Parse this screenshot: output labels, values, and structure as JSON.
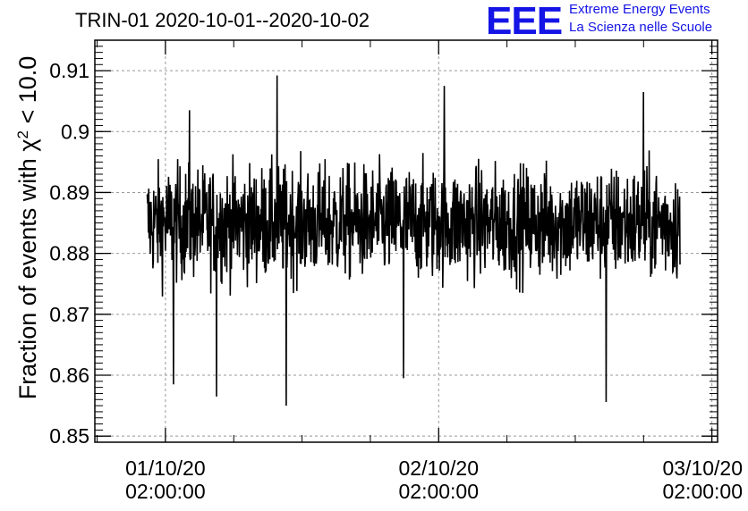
{
  "header": {
    "title": "TRIN-01 2020-10-01--2020-10-02",
    "logo_text": "EEE",
    "logo_line1": "Extreme Energy Events",
    "logo_line2": "La Scienza nelle Scuole",
    "logo_color": "#1414e6"
  },
  "chart_data": {
    "type": "line",
    "title": "TRIN-01 2020-10-01--2020-10-02",
    "ylabel_main": "Fraction of events with χ",
    "ylabel_sup": "2",
    "ylabel_tail": " < 10.0",
    "xlabel": "",
    "ylim": [
      0.849,
      0.915
    ],
    "xlim_hours": [
      -6.2,
      48.5
    ],
    "grid": true,
    "line_color": "#000000",
    "y_ticks": [
      {
        "value": 0.85,
        "label": "0.85"
      },
      {
        "value": 0.86,
        "label": "0.86"
      },
      {
        "value": 0.87,
        "label": "0.87"
      },
      {
        "value": 0.88,
        "label": "0.88"
      },
      {
        "value": 0.89,
        "label": "0.89"
      },
      {
        "value": 0.9,
        "label": "0.9"
      },
      {
        "value": 0.91,
        "label": "0.91"
      }
    ],
    "x_ticks": [
      {
        "value": 0,
        "date": "01/10/20",
        "time": "02:00:00"
      },
      {
        "value": 24,
        "date": "02/10/20",
        "time": "02:00:00"
      },
      {
        "value": 48,
        "date": "03/10/20",
        "time": "02:00:00"
      }
    ],
    "series": [
      {
        "x_start": -1.6,
        "x_end": 45.2,
        "points": 1400,
        "mean": 0.885,
        "spread": 0.0062,
        "spikes": [
          {
            "x": 0.7,
            "y": 0.8585
          },
          {
            "x": 4.5,
            "y": 0.8565
          },
          {
            "x": 10.6,
            "y": 0.855
          },
          {
            "x": 20.9,
            "y": 0.8595
          },
          {
            "x": 38.7,
            "y": 0.8556
          },
          {
            "x": 9.8,
            "y": 0.9092
          },
          {
            "x": 24.5,
            "y": 0.9075
          },
          {
            "x": 2.1,
            "y": 0.9035
          },
          {
            "x": 42.0,
            "y": 0.9065
          }
        ]
      }
    ]
  }
}
